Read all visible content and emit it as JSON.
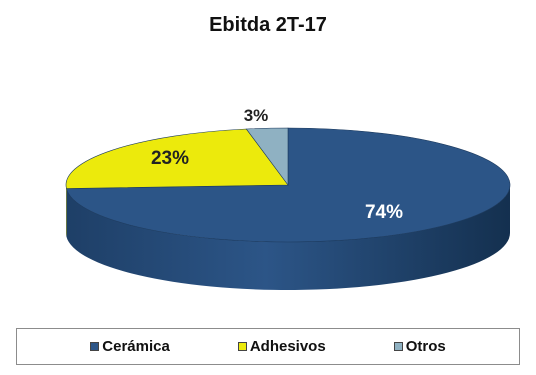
{
  "chart_data": {
    "type": "pie",
    "title": "Ebitda 2T-17",
    "categories": [
      "Cerámica",
      "Adhesivos",
      "Otros"
    ],
    "values": [
      74,
      23,
      3
    ],
    "labels": [
      "74%",
      "23%",
      "3%"
    ],
    "colors": [
      "#2c5587",
      "#ecea0c",
      "#8fb1c2"
    ],
    "legend_position": "bottom",
    "style": "3d-exploded-tilted"
  }
}
